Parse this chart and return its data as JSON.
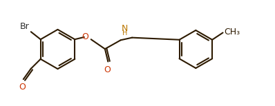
{
  "bg_color": "#ffffff",
  "bond_color": "#2d1a00",
  "br_color": "#2d2d2d",
  "o_color": "#cc3300",
  "n_color": "#bb7700",
  "lw": 1.5,
  "dbo": 0.09,
  "fs": 9.0,
  "xlim": [
    0,
    10.5
  ],
  "ylim": [
    0,
    4.2
  ]
}
